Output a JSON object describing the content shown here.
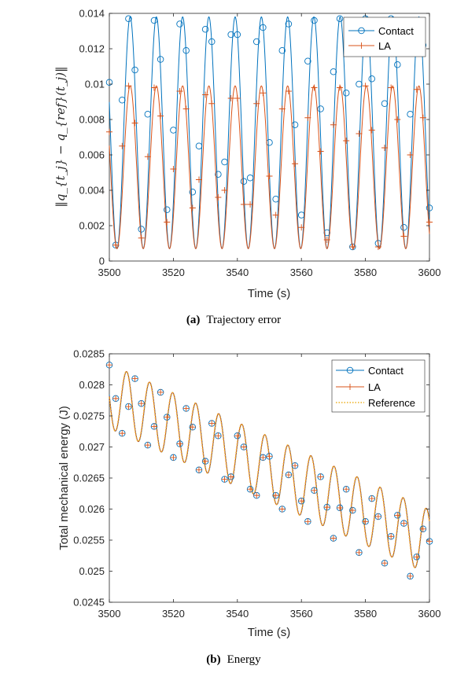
{
  "colors": {
    "contact": "#0072BD",
    "la": "#D95319",
    "reference": "#EDB120",
    "axis": "#262626"
  },
  "captions": [
    {
      "tag": "(a)",
      "text": "Trajectory error"
    },
    {
      "tag": "(b)",
      "text": "Energy"
    }
  ],
  "chart_data": [
    {
      "type": "line",
      "title": "",
      "xlabel": "Time (s)",
      "ylabel": "‖q_{t_j} − q_{ref}(t_j)‖",
      "xlim": [
        3500,
        3600
      ],
      "ylim": [
        0,
        0.014
      ],
      "xticks": [
        "3500",
        "3520",
        "3540",
        "3560",
        "3580",
        "3600"
      ],
      "yticks": [
        "0",
        "0.002",
        "0.004",
        "0.006",
        "0.008",
        "0.01",
        "0.012",
        "0.014"
      ],
      "grid": false,
      "legend_position": "top-right",
      "series": [
        {
          "name": "Contact",
          "style": "line-circle",
          "period": 8.2,
          "phase": 3502.4,
          "min": 0.0007,
          "max": 0.0138,
          "markers": [
            [
              3500,
              0.0101
            ],
            [
              3502,
              0.0009
            ],
            [
              3504,
              0.0091
            ],
            [
              3506,
              0.0137
            ],
            [
              3508,
              0.0108
            ],
            [
              3510,
              0.0018
            ],
            [
              3512,
              0.0083
            ],
            [
              3514,
              0.0136
            ],
            [
              3516,
              0.0114
            ],
            [
              3518,
              0.0029
            ],
            [
              3520,
              0.0074
            ],
            [
              3522,
              0.0134
            ],
            [
              3524,
              0.0119
            ],
            [
              3526,
              0.0039
            ],
            [
              3528,
              0.0065
            ],
            [
              3530,
              0.0131
            ],
            [
              3532,
              0.0124
            ],
            [
              3534,
              0.0049
            ],
            [
              3536,
              0.0056
            ],
            [
              3538,
              0.0128
            ],
            [
              3540,
              0.0128
            ],
            [
              3542,
              0.0045
            ],
            [
              3544,
              0.0047
            ],
            [
              3546,
              0.0124
            ],
            [
              3548,
              0.0132
            ],
            [
              3550,
              0.0067
            ],
            [
              3552,
              0.0035
            ],
            [
              3554,
              0.0119
            ],
            [
              3556,
              0.0134
            ],
            [
              3558,
              0.0077
            ],
            [
              3560,
              0.0026
            ],
            [
              3562,
              0.0113
            ],
            [
              3564,
              0.0136
            ],
            [
              3566,
              0.0086
            ],
            [
              3568,
              0.0016
            ],
            [
              3570,
              0.0107
            ],
            [
              3572,
              0.0137
            ],
            [
              3574,
              0.0095
            ],
            [
              3576,
              0.0008
            ],
            [
              3578,
              0.01
            ],
            [
              3580,
              0.0137
            ],
            [
              3582,
              0.0103
            ],
            [
              3584,
              0.001
            ],
            [
              3586,
              0.0089
            ],
            [
              3588,
              0.0137
            ],
            [
              3590,
              0.0111
            ],
            [
              3592,
              0.0019
            ],
            [
              3594,
              0.0083
            ],
            [
              3596,
              0.0135
            ],
            [
              3598,
              0.0122
            ],
            [
              3600,
              0.003
            ]
          ]
        },
        {
          "name": "LA",
          "style": "line-plus",
          "period": 8.2,
          "phase": 3502.4,
          "min": 0.0007,
          "max": 0.0099,
          "markers": [
            [
              3500,
              0.0073
            ],
            [
              3502,
              0.0009
            ],
            [
              3504,
              0.0065
            ],
            [
              3506,
              0.0099
            ],
            [
              3508,
              0.0078
            ],
            [
              3510,
              0.0013
            ],
            [
              3512,
              0.0059
            ],
            [
              3514,
              0.0098
            ],
            [
              3516,
              0.0082
            ],
            [
              3518,
              0.0022
            ],
            [
              3520,
              0.0052
            ],
            [
              3522,
              0.0096
            ],
            [
              3524,
              0.0086
            ],
            [
              3526,
              0.003
            ],
            [
              3528,
              0.0046
            ],
            [
              3530,
              0.0094
            ],
            [
              3532,
              0.0089
            ],
            [
              3534,
              0.0036
            ],
            [
              3536,
              0.004
            ],
            [
              3538,
              0.0092
            ],
            [
              3540,
              0.0092
            ],
            [
              3542,
              0.0032
            ],
            [
              3544,
              0.0032
            ],
            [
              3546,
              0.0089
            ],
            [
              3548,
              0.0095
            ],
            [
              3550,
              0.0048
            ],
            [
              3552,
              0.0026
            ],
            [
              3554,
              0.0086
            ],
            [
              3556,
              0.0096
            ],
            [
              3558,
              0.0055
            ],
            [
              3560,
              0.0019
            ],
            [
              3562,
              0.0081
            ],
            [
              3564,
              0.0098
            ],
            [
              3566,
              0.0062
            ],
            [
              3568,
              0.0012
            ],
            [
              3570,
              0.0077
            ],
            [
              3572,
              0.0098
            ],
            [
              3574,
              0.0068
            ],
            [
              3576,
              0.0008
            ],
            [
              3578,
              0.0072
            ],
            [
              3580,
              0.0099
            ],
            [
              3582,
              0.0074
            ],
            [
              3584,
              0.0008
            ],
            [
              3586,
              0.0064
            ],
            [
              3588,
              0.0098
            ],
            [
              3590,
              0.008
            ],
            [
              3592,
              0.0014
            ],
            [
              3594,
              0.006
            ],
            [
              3596,
              0.0097
            ],
            [
              3598,
              0.0081
            ],
            [
              3600,
              0.0022
            ]
          ]
        }
      ]
    },
    {
      "type": "line",
      "title": "",
      "xlabel": "Time (s)",
      "ylabel": "Total mechanical energy (J)",
      "xlim": [
        3500,
        3600
      ],
      "ylim": [
        0.0245,
        0.0285
      ],
      "xticks": [
        "3500",
        "3520",
        "3540",
        "3560",
        "3580",
        "3600"
      ],
      "yticks": [
        "0.0245",
        "0.025",
        "0.0255",
        "0.026",
        "0.0265",
        "0.027",
        "0.0275",
        "0.028",
        "0.0285"
      ],
      "grid": false,
      "legend_position": "top-right",
      "series": [
        {
          "name": "Contact",
          "style": "line-circle"
        },
        {
          "name": "LA",
          "style": "line-plus"
        },
        {
          "name": "Reference",
          "style": "dotted"
        }
      ],
      "curve": {
        "start": 0.02782,
        "slope": -2.35e-05,
        "amplitude": 0.00052,
        "period": 7.2,
        "phase": 3498.2
      },
      "markers": [
        [
          3500,
          0.02832
        ],
        [
          3502,
          0.02778
        ],
        [
          3504,
          0.02722
        ],
        [
          3506,
          0.02765
        ],
        [
          3508,
          0.0281
        ],
        [
          3510,
          0.0277
        ],
        [
          3512,
          0.02703
        ],
        [
          3514,
          0.02733
        ],
        [
          3516,
          0.02788
        ],
        [
          3518,
          0.02748
        ],
        [
          3520,
          0.02683
        ],
        [
          3522,
          0.02705
        ],
        [
          3524,
          0.02762
        ],
        [
          3526,
          0.02732
        ],
        [
          3528,
          0.02663
        ],
        [
          3530,
          0.02677
        ],
        [
          3532,
          0.02738
        ],
        [
          3534,
          0.02718
        ],
        [
          3536,
          0.02648
        ],
        [
          3538,
          0.02652
        ],
        [
          3540,
          0.02718
        ],
        [
          3542,
          0.027
        ],
        [
          3544,
          0.02632
        ],
        [
          3546,
          0.02622
        ],
        [
          3548,
          0.02683
        ],
        [
          3550,
          0.02685
        ],
        [
          3552,
          0.02622
        ],
        [
          3554,
          0.026
        ],
        [
          3556,
          0.02655
        ],
        [
          3558,
          0.0267
        ],
        [
          3560,
          0.02613
        ],
        [
          3562,
          0.0258
        ],
        [
          3564,
          0.0263
        ],
        [
          3566,
          0.02652
        ],
        [
          3568,
          0.02603
        ],
        [
          3570,
          0.02553
        ],
        [
          3572,
          0.02602
        ],
        [
          3574,
          0.02632
        ],
        [
          3576,
          0.02598
        ],
        [
          3578,
          0.0253
        ],
        [
          3580,
          0.0258
        ],
        [
          3582,
          0.02617
        ],
        [
          3584,
          0.02588
        ],
        [
          3586,
          0.02513
        ],
        [
          3588,
          0.02556
        ],
        [
          3590,
          0.0259
        ],
        [
          3592,
          0.02577
        ],
        [
          3594,
          0.02492
        ],
        [
          3596,
          0.02523
        ],
        [
          3598,
          0.02568
        ],
        [
          3600,
          0.02548
        ]
      ]
    }
  ]
}
